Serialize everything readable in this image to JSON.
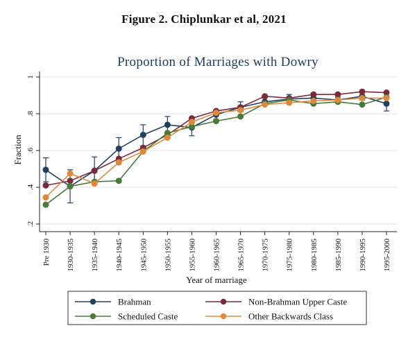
{
  "figure": {
    "caption": "Figure 2. Chiplunkar et al, 2021"
  },
  "chart_data": {
    "type": "line",
    "title": "Proportion of Marriages with Dowry",
    "xlabel": "Year of marriage",
    "ylabel": "Fraction",
    "categories": [
      "Pre 1930",
      "1930-1935",
      "1935-1940",
      "1940-1945",
      "1945-1950",
      "1950-1955",
      "1955-1960",
      "1960-1965",
      "1965-1970",
      "1970-1975",
      "1975-1980",
      "1980-1985",
      "1985-1990",
      "1990-1995",
      "1995-2000"
    ],
    "ylim": [
      0.2,
      1.0
    ],
    "yticks": [
      0.2,
      0.4,
      0.6,
      0.8,
      1.0
    ],
    "ytick_labels": [
      ".2",
      ".4",
      ".6",
      ".8",
      "1"
    ],
    "grid": true,
    "legend_position": "bottom",
    "series": [
      {
        "name": "Brahman",
        "color": "#1f3f5f",
        "values": [
          0.495,
          0.405,
          0.49,
          0.61,
          0.685,
          0.74,
          0.725,
          0.795,
          0.835,
          0.865,
          0.88,
          0.885,
          0.875,
          0.895,
          0.855
        ],
        "error_low": [
          0.43,
          0.315,
          0.415,
          0.545,
          0.625,
          0.695,
          0.68,
          0.77,
          0.81,
          0.845,
          0.86,
          0.865,
          0.86,
          0.875,
          0.815
        ],
        "error_high": [
          0.56,
          0.495,
          0.565,
          0.67,
          0.74,
          0.785,
          0.77,
          0.82,
          0.865,
          0.885,
          0.905,
          0.905,
          0.89,
          0.915,
          0.895
        ]
      },
      {
        "name": "Non-Brahman Upper Caste",
        "color": "#7a2a3a",
        "values": [
          0.41,
          0.435,
          0.49,
          0.555,
          0.615,
          0.685,
          0.775,
          0.815,
          0.835,
          0.895,
          0.885,
          0.905,
          0.905,
          0.92,
          0.915
        ]
      },
      {
        "name": "Scheduled Caste",
        "color": "#4a7a3a",
        "values": [
          0.305,
          0.405,
          0.43,
          0.435,
          0.595,
          0.695,
          0.73,
          0.76,
          0.785,
          0.855,
          0.875,
          0.855,
          0.865,
          0.85,
          0.89
        ]
      },
      {
        "name": "Other Backwards Class",
        "color": "#e0883a",
        "values": [
          0.345,
          0.475,
          0.42,
          0.535,
          0.595,
          0.67,
          0.755,
          0.805,
          0.82,
          0.85,
          0.86,
          0.87,
          0.875,
          0.885,
          0.885
        ]
      }
    ]
  }
}
